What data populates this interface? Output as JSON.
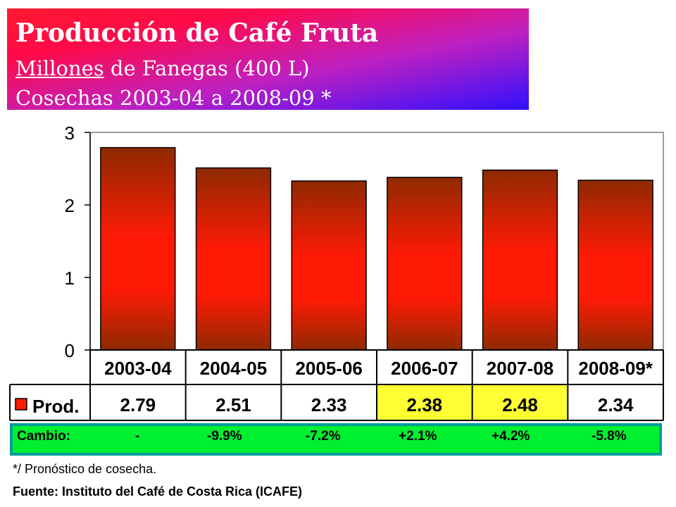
{
  "header": {
    "title": "Producción de Café Fruta",
    "subtitle_underlined": "Millones",
    "subtitle_rest": " de Fanegas (400 L)",
    "subtitle2": "Cosechas 2003-04 a 2008-09 *"
  },
  "chart_data": {
    "type": "bar",
    "categories": [
      "2003-04",
      "2004-05",
      "2005-06",
      "2006-07",
      "2007-08",
      "2008-09*"
    ],
    "series": [
      {
        "name": "Prod.",
        "values": [
          2.79,
          2.51,
          2.33,
          2.38,
          2.48,
          2.34
        ]
      }
    ],
    "value_labels": [
      "2.79",
      "2.51",
      "2.33",
      "2.38",
      "2.48",
      "2.34"
    ],
    "highlighted_categories": [
      "2006-07",
      "2007-08"
    ],
    "ylim": [
      0,
      3
    ],
    "yticks": [
      0,
      1,
      2,
      3
    ],
    "grid": false,
    "legend": "data-table",
    "colors": {
      "bar_top": "#8e2a00",
      "bar_mid": "#ff1a05",
      "bar_border": "#000000",
      "highlight": "#ffff33"
    }
  },
  "cambio": {
    "label": "Cambio:",
    "values": [
      "-",
      "-9.9%",
      "-7.2%",
      "+2.1%",
      "+4.2%",
      "-5.8%"
    ]
  },
  "footer": {
    "note": "*/ Pronóstico de cosecha.",
    "source": "Fuente: Instituto del Café de Costa Rica (ICAFE)"
  }
}
